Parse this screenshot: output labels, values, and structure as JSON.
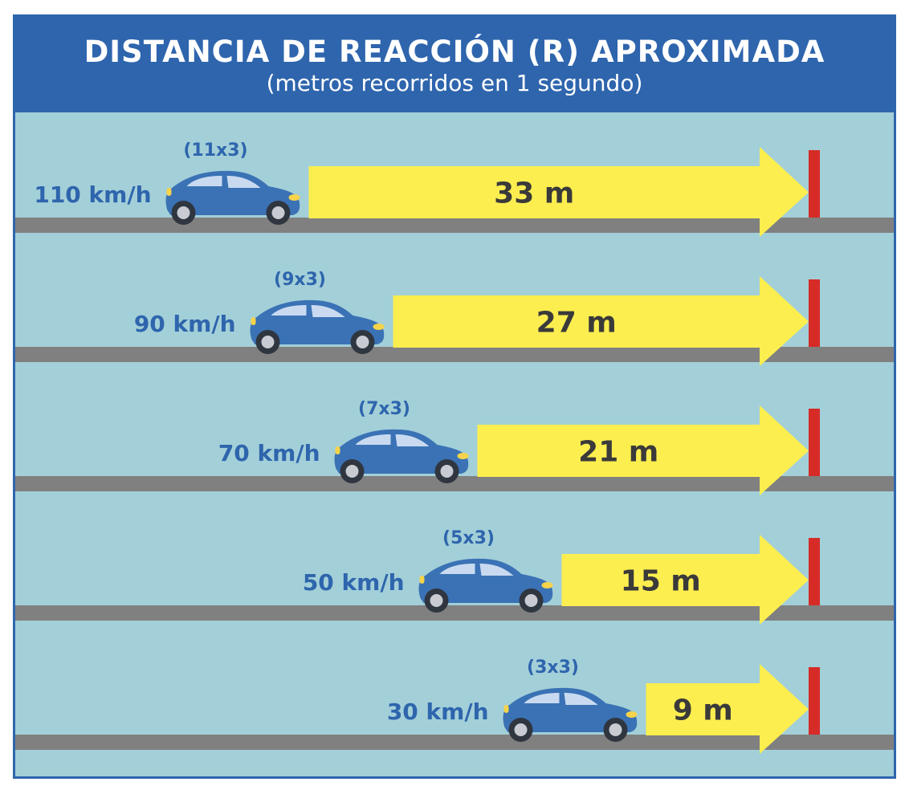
{
  "header": {
    "title": "DISTANCIA DE REACCIÓN (R) APROXIMADA",
    "subtitle": "(metros recorridos en 1 segundo)"
  },
  "colors": {
    "header": "#2e65ad",
    "background": "#a3cfd8",
    "arrow": "#fcee4f",
    "road": "#808080",
    "post": "#d62b27",
    "car": "#3a72b5",
    "label": "#2e65ad",
    "value": "#3a3a3a"
  },
  "chart_data": {
    "type": "bar",
    "title": "DISTANCIA DE REACCIÓN (R) APROXIMADA",
    "subtitle": "(metros recorridos en 1 segundo)",
    "rows": [
      {
        "speed": "110 km/h",
        "formula": "(11x3)",
        "distance": 33,
        "label": "33 m"
      },
      {
        "speed": "90 km/h",
        "formula": "(9x3)",
        "distance": 27,
        "label": "27 m"
      },
      {
        "speed": "70 km/h",
        "formula": "(7x3)",
        "distance": 21,
        "label": "21 m"
      },
      {
        "speed": "50 km/h",
        "formula": "(5x3)",
        "distance": 15,
        "label": "15 m"
      },
      {
        "speed": "30 km/h",
        "formula": "(3x3)",
        "distance": 9,
        "label": "9 m"
      }
    ]
  }
}
